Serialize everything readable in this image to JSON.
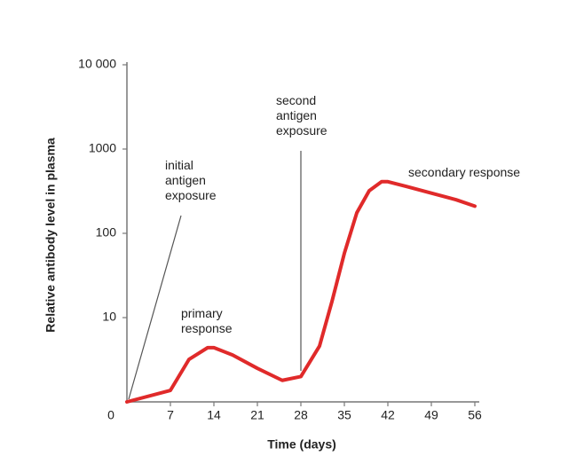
{
  "chart_data": {
    "type": "line",
    "y_label": "Relative antibody level in plasma",
    "x_label": "Time (days)",
    "log_y": true,
    "xlim": [
      0,
      56
    ],
    "xticks": [
      0,
      7,
      14,
      21,
      28,
      35,
      42,
      49,
      56
    ],
    "ylim": [
      1,
      10000
    ],
    "yticks": [
      {
        "value": 10,
        "label": "10"
      },
      {
        "value": 100,
        "label": "100"
      },
      {
        "value": 1000,
        "label": "1000"
      },
      {
        "value": 10000,
        "label": "10 000"
      }
    ],
    "series": [
      {
        "name": "antibody level",
        "color": "#e02a2a",
        "x": [
          0,
          7,
          10,
          13,
          14,
          17,
          21,
          25,
          28,
          31,
          33,
          35,
          37,
          39,
          41,
          42,
          45,
          49,
          53,
          56
        ],
        "values": [
          1,
          1.37,
          3.2,
          4.4,
          4.4,
          3.6,
          2.5,
          1.8,
          2.0,
          4.6,
          15.5,
          58,
          175,
          320,
          410,
          410,
          360,
          300,
          250,
          210
        ]
      }
    ],
    "annotations": [
      {
        "lines": [
          "initial",
          "antigen",
          "exposure"
        ]
      },
      {
        "lines": [
          "second",
          "antigen",
          "exposure"
        ]
      },
      {
        "lines": [
          "primary",
          "response"
        ]
      },
      {
        "lines": [
          "secondary response"
        ]
      }
    ]
  }
}
